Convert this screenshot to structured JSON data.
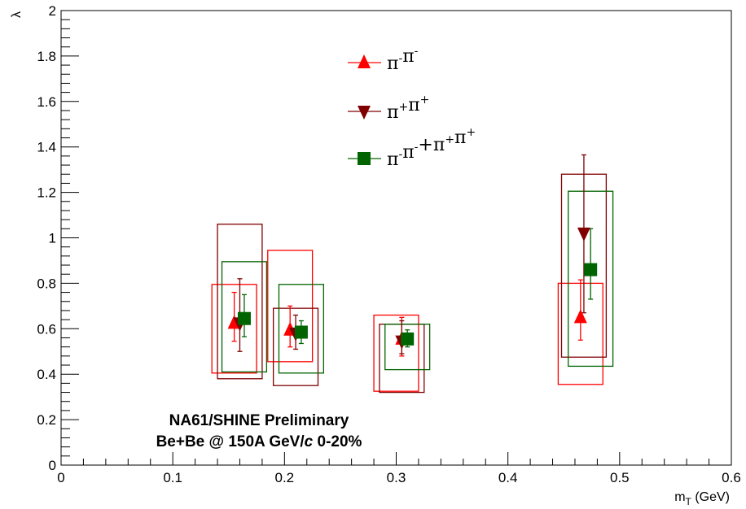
{
  "chart_data": {
    "type": "scatter",
    "xlabel": "m",
    "xlabel_sub": "T",
    "xlabel_unit": " (GeV)",
    "ylabel": "λ",
    "xlim": [
      0,
      0.6
    ],
    "ylim": [
      0,
      2
    ],
    "x_ticks": [
      "0",
      "0.1",
      "0.2",
      "0.3",
      "0.4",
      "0.5",
      "0.6"
    ],
    "y_ticks": [
      "0",
      "0.2",
      "0.4",
      "0.6",
      "0.8",
      "1",
      "1.2",
      "1.4",
      "1.6",
      "1.8",
      "2"
    ],
    "grid": false,
    "legend_position": "top-center",
    "annotation_lines": [
      "NA61/SHINE Preliminary",
      "Be+Be @ 150A GeV/",
      "c",
      " 0-20%"
    ],
    "series": [
      {
        "name": "π⁻π⁻",
        "marker": "triangle-up",
        "color": "#ff0000",
        "points": [
          {
            "x": 0.155,
            "y": 0.625,
            "stat": [
              0.545,
              0.76
            ],
            "sys": [
              0.135,
              0.175,
              0.405,
              0.795
            ]
          },
          {
            "x": 0.205,
            "y": 0.595,
            "stat": [
              0.52,
              0.7
            ],
            "sys": [
              0.185,
              0.225,
              0.455,
              0.945
            ]
          },
          {
            "x": 0.305,
            "y": 0.555,
            "stat": [
              0.48,
              0.65
            ],
            "sys": [
              0.28,
              0.32,
              0.325,
              0.66
            ]
          },
          {
            "x": 0.465,
            "y": 0.65,
            "stat": [
              0.55,
              0.815
            ],
            "sys": [
              0.445,
              0.485,
              0.355,
              0.8
            ]
          }
        ]
      },
      {
        "name": "π⁺π⁺",
        "marker": "triangle-down",
        "color": "#800000",
        "points": [
          {
            "x": 0.16,
            "y": 0.625,
            "stat": [
              0.5,
              0.82
            ],
            "sys": [
              0.14,
              0.18,
              0.38,
              1.06
            ]
          },
          {
            "x": 0.21,
            "y": 0.58,
            "stat": [
              0.51,
              0.66
            ],
            "sys": [
              0.19,
              0.23,
              0.35,
              0.69
            ]
          },
          {
            "x": 0.305,
            "y": 0.545,
            "stat": [
              0.49,
              0.635
            ],
            "sys": [
              0.285,
              0.325,
              0.32,
              0.62
            ]
          },
          {
            "x": 0.468,
            "y": 1.02,
            "stat": [
              0.67,
              1.365
            ],
            "sys": [
              0.448,
              0.488,
              0.475,
              1.28
            ]
          }
        ]
      },
      {
        "name": "π⁻π⁻+π⁺π⁺",
        "marker": "square",
        "color": "#006400",
        "points": [
          {
            "x": 0.164,
            "y": 0.645,
            "stat": [
              0.565,
              0.75
            ],
            "sys": [
              0.144,
              0.184,
              0.41,
              0.895
            ]
          },
          {
            "x": 0.215,
            "y": 0.585,
            "stat": [
              0.535,
              0.635
            ],
            "sys": [
              0.195,
              0.235,
              0.405,
              0.795
            ]
          },
          {
            "x": 0.31,
            "y": 0.555,
            "stat": [
              0.52,
              0.595
            ],
            "sys": [
              0.29,
              0.33,
              0.42,
              0.62
            ]
          },
          {
            "x": 0.474,
            "y": 0.86,
            "stat": [
              0.73,
              1.04
            ],
            "sys": [
              0.454,
              0.494,
              0.435,
              1.205
            ]
          }
        ]
      }
    ]
  }
}
